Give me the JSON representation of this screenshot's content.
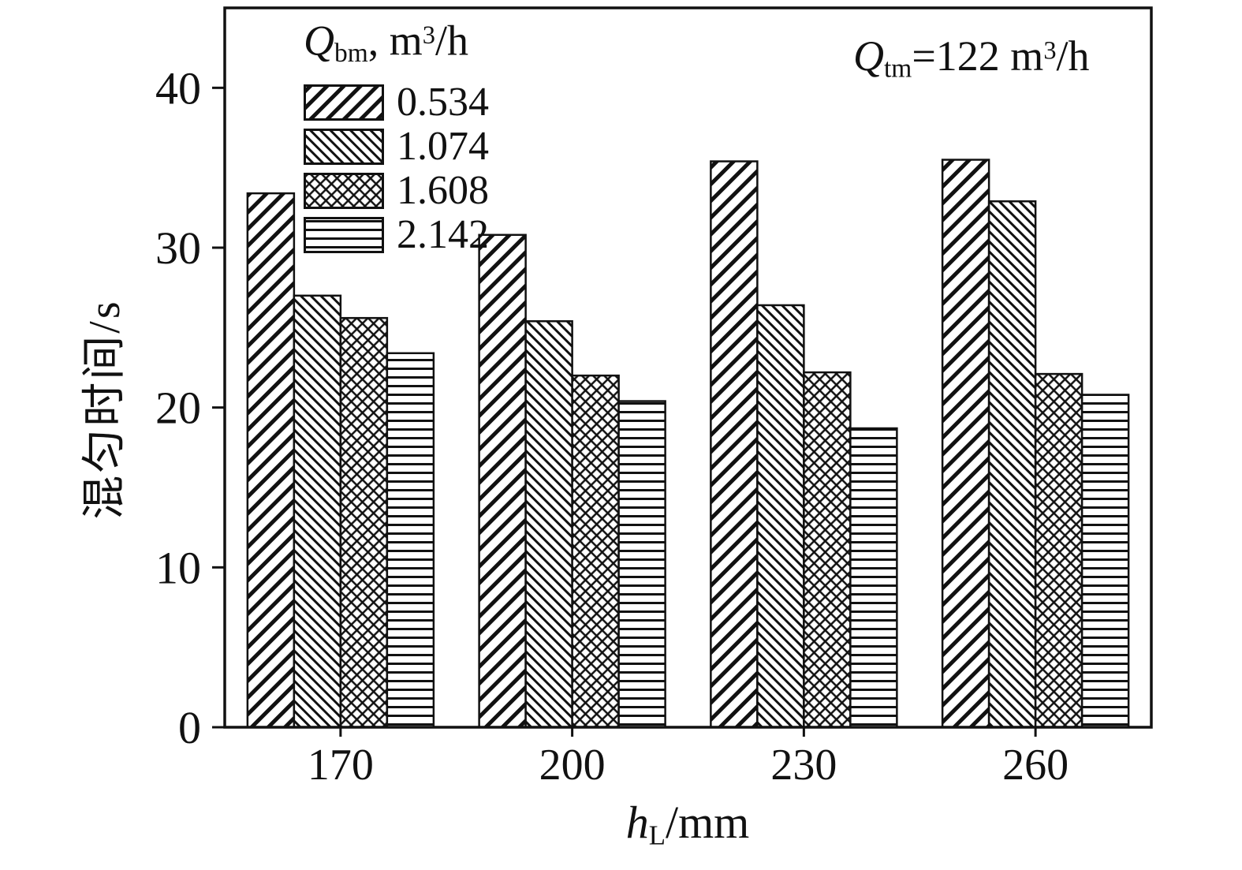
{
  "colors": {
    "ink": "#111111",
    "background": "#ffffff"
  },
  "chart_data": {
    "type": "bar",
    "title": "",
    "ylabel": "混匀时间/s",
    "xlabel": {
      "var": "h",
      "sub": "L",
      "rest": "/mm"
    },
    "categories": [
      "170",
      "200",
      "230",
      "260"
    ],
    "yticks": [
      0,
      10,
      20,
      30,
      40
    ],
    "ylim": [
      0,
      45
    ],
    "grid": false,
    "legend_position": "top-left-inside",
    "legend_title": {
      "q": "Q",
      "sub": "bm",
      "rest": ", m",
      "sup": "3",
      "unit": "/h"
    },
    "annotation": {
      "q": "Q",
      "sub": "tm",
      "eq": "=122 m",
      "sup": "3",
      "unit": "/h"
    },
    "series": [
      {
        "name": "0.534",
        "pattern": "diag-up",
        "values": [
          33.4,
          30.8,
          35.4,
          35.5
        ]
      },
      {
        "name": "1.074",
        "pattern": "diag-down",
        "values": [
          27.0,
          25.4,
          26.4,
          32.9
        ]
      },
      {
        "name": "1.608",
        "pattern": "cross",
        "values": [
          25.6,
          22.0,
          22.2,
          22.1
        ]
      },
      {
        "name": "2.142",
        "pattern": "horiz",
        "values": [
          23.4,
          20.4,
          18.7,
          20.8
        ]
      }
    ]
  }
}
